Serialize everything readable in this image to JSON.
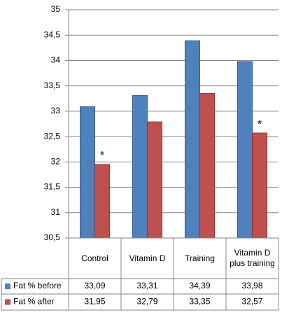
{
  "chart_data": {
    "type": "bar",
    "categories": [
      "Control",
      "Vitamin D",
      "Training",
      "Vitamin D plus training"
    ],
    "series": [
      {
        "name": "Fat % before",
        "color": "#4f81bd",
        "values": [
          33.09,
          33.31,
          34.39,
          33.98
        ],
        "value_labels": [
          "33,09",
          "33,31",
          "34,39",
          "33,98"
        ]
      },
      {
        "name": "Fat % after",
        "color": "#c0504d",
        "values": [
          31.95,
          32.79,
          33.35,
          32.57
        ],
        "value_labels": [
          "31,95",
          "32,79",
          "33,35",
          "32,57"
        ]
      }
    ],
    "ylim": [
      30.5,
      35
    ],
    "yticks": [
      {
        "value": 30.5,
        "label": "30,5"
      },
      31,
      {
        "value": 31.5,
        "label": "31,5"
      },
      32,
      {
        "value": 32.5,
        "label": "32,5"
      },
      33,
      {
        "value": 33.5,
        "label": "33,5"
      },
      34,
      {
        "value": 34.5,
        "label": "34,5"
      },
      35
    ],
    "grid": true,
    "annotations": [
      {
        "text": "*",
        "series": "Fat % after",
        "category": "Control"
      },
      {
        "text": "*",
        "series": "Fat % after",
        "category": "Vitamin D plus training"
      }
    ]
  }
}
